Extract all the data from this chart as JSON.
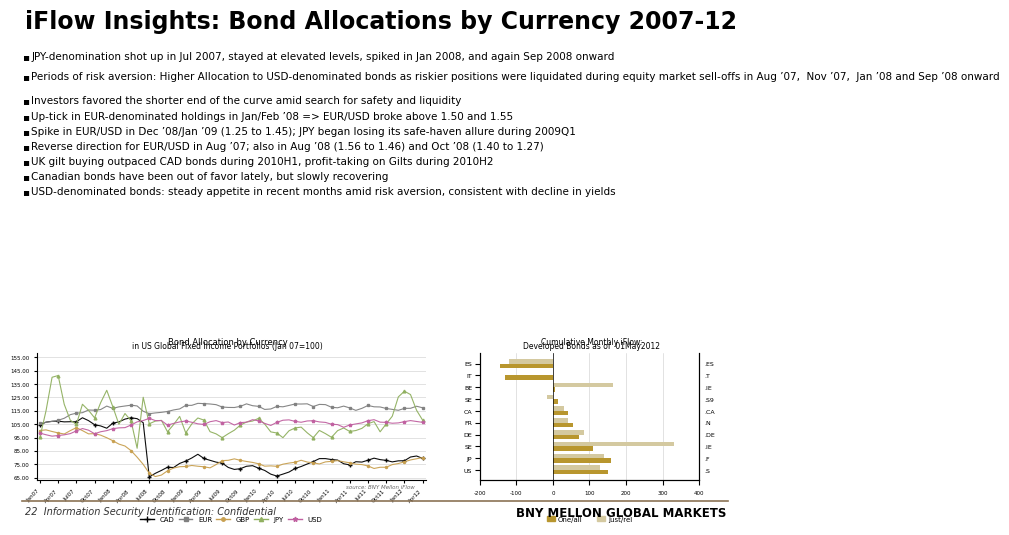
{
  "title": "iFlow Insights: Bond Allocations by Currency 2007-12",
  "bullets": [
    "JPY-denomination shot up in Jul 2007, stayed at elevated levels, spiked in Jan 2008, and again Sep 2008 onward",
    "Periods of risk aversion: Higher Allocation to USD-denominated bonds as riskier positions were liquidated during equity market sell-offs in Aug ’07,  Nov ’07,  Jan ’08 and Sep ’08 onward",
    "Investors favored the shorter end of the curve amid search for safety and liquidity",
    "Up-tick in EUR-denominated holdings in Jan/Feb ’08 => EUR/USD broke above 1.50 and 1.55",
    "Spike in EUR/USD in Dec ’08/Jan ’09 (1.25 to 1.45); JPY began losing its safe-haven allure during 2009Q1",
    "Reverse direction for EUR/USD in Aug ’07; also in Aug ’08 (1.56 to 1.46) and Oct ’08 (1.40 to 1.27)",
    "UK gilt buying outpaced CAD bonds during 2010H1, profit-taking on Gilts during 2010H2",
    "Canadian bonds have been out of favor lately, but slowly recovering",
    "USD-denominated bonds: steady appetite in recent months amid risk aversion, consistent with decline in yields"
  ],
  "footer_left": "22  Information Security Identification: Confidential",
  "footer_right": "BNY MELLON GLOBAL MARKETS",
  "bg_color": "#ffffff",
  "title_color": "#000000",
  "bullet_color": "#000000",
  "footer_line_color": "#8B7355",
  "title_fontsize": 17,
  "bullet_fontsize": 7.5,
  "footer_fontsize": 7.0,
  "chart_left_title": "Bond Allocation by Currency",
  "chart_left_subtitle": "in US Global Fixed Income Portfolios (Jan 07=100)",
  "chart_right_title": "Cumulative Monthly iFlow:",
  "chart_right_subtitle": "Developed Bonds as of  01May2012",
  "bar_labels_left": [
    "US",
    "JP",
    "SE",
    "DE",
    "FR",
    "CA",
    "SE",
    "BE",
    "IT",
    "ES"
  ],
  "bar_labels_right": [
    ".S",
    ".F",
    ".IE",
    ".DE",
    ".N",
    ".CA",
    ".S9",
    ".IE",
    ".T",
    ".ES"
  ],
  "bar_dark_values": [
    150,
    160,
    110,
    70,
    55,
    40,
    15,
    5,
    -130,
    -145
  ],
  "bar_light_values": [
    130,
    140,
    330,
    85,
    40,
    30,
    -15,
    165,
    0,
    -120
  ],
  "bar_color_dark": "#B8962E",
  "bar_color_light": "#D4C9A0",
  "line_chart_yticks": [
    "65.00",
    "75.00",
    "85.00",
    "95.00",
    "105.00",
    "115.00",
    "125.00",
    "135.00",
    "145.00",
    "155.00"
  ],
  "line_chart_ytick_vals": [
    65,
    75,
    85,
    95,
    105,
    115,
    125,
    135,
    145,
    155
  ],
  "line_chart_xtick_labels": [
    "Jan07",
    "Apr07",
    "Jul07",
    "Oct07",
    "Jan08",
    "Apr08",
    "Jul08",
    "Oct08",
    "Jan09",
    "Apr09",
    "Jul09",
    "Oct09",
    "Jan10",
    "Apr10",
    "Jul10",
    "Oct10",
    "Jan11",
    "Apr11",
    "Jul11",
    "Oct11",
    "Jan12",
    "Apr12"
  ],
  "cad_color": "#000000",
  "eur_color": "#808080",
  "gbp_color": "#C8A050",
  "jpy_color": "#90B060",
  "usd_color": "#C060A0",
  "source_text": "source: BNY Mellon iFlow"
}
